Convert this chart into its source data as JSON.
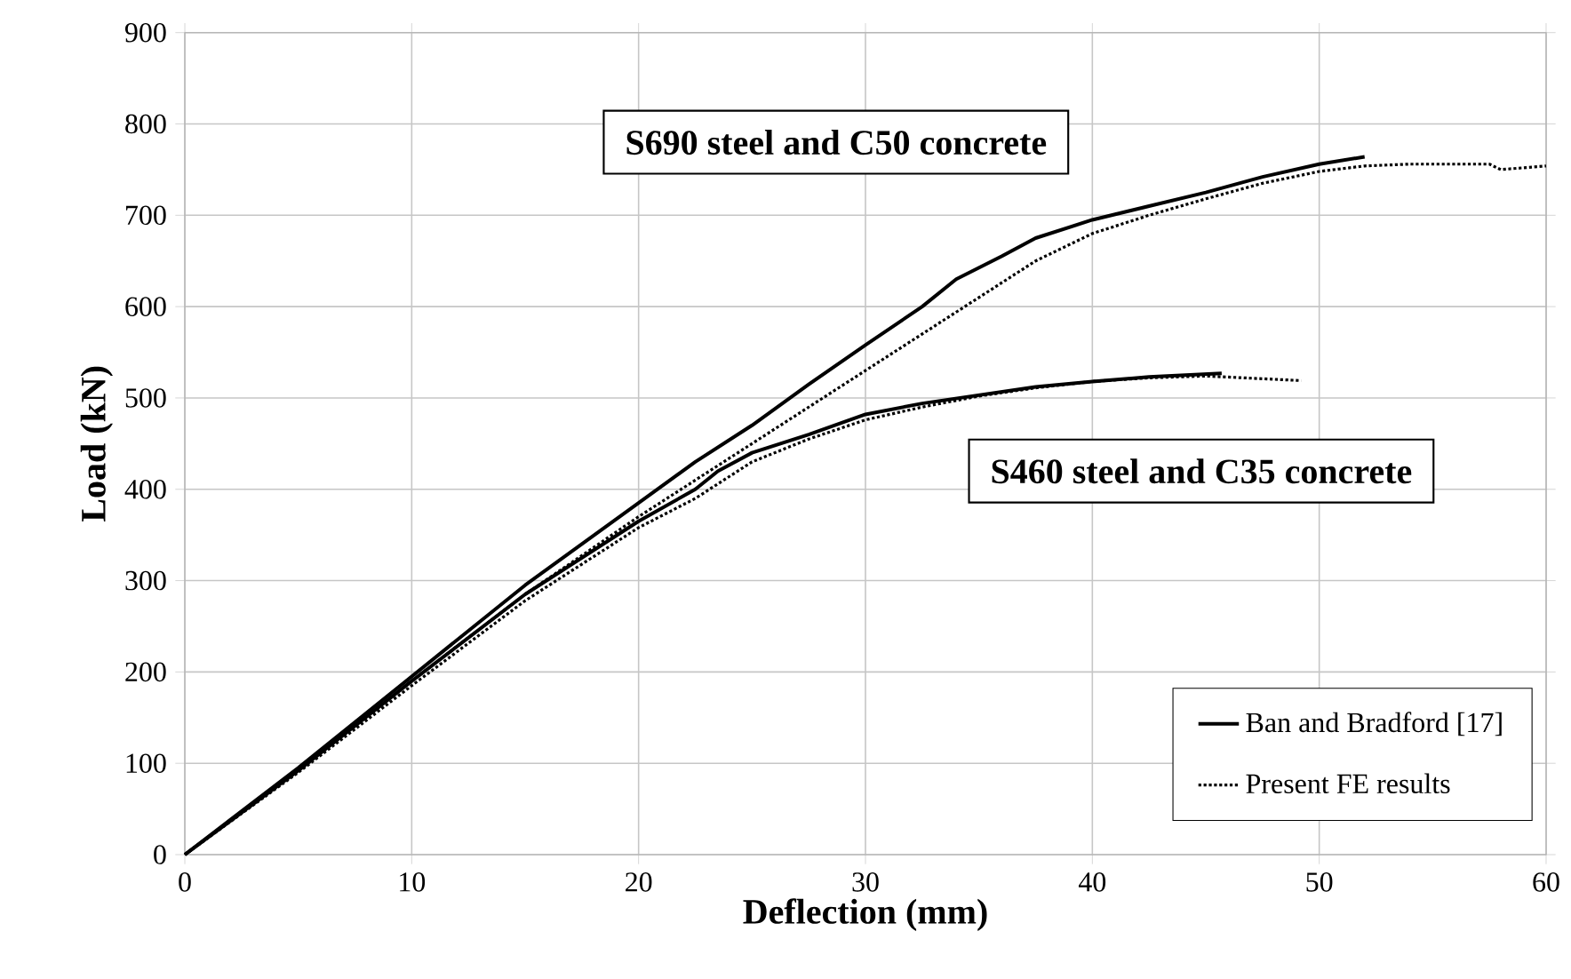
{
  "chart_data": {
    "type": "line",
    "xlabel": "Deflection (mm)",
    "ylabel": "Load (kN)",
    "xlim": [
      0,
      60
    ],
    "xticks": [
      0,
      10,
      20,
      30,
      40,
      50,
      60
    ],
    "ylim": [
      0,
      900
    ],
    "yticks": [
      0,
      100,
      200,
      300,
      400,
      500,
      600,
      700,
      800,
      900
    ],
    "grid": true,
    "legend": "bottom right",
    "marker": "none",
    "annotations": [
      "S690 steel and C50 concrete",
      "S460 steel and C35 concrete"
    ],
    "series": [
      {
        "name": "Ban and Bradford [17]",
        "color": "#000000",
        "line_style": "solid",
        "x": [
          0,
          5,
          10,
          15,
          20,
          22.5,
          25,
          27.5,
          30,
          32.5,
          34,
          36,
          37.5,
          40,
          42.5,
          45,
          47.5,
          50,
          52
        ],
        "values": [
          0,
          95,
          195,
          295,
          385,
          430,
          470,
          515,
          558,
          600,
          630,
          655,
          675,
          695,
          710,
          725,
          742,
          756,
          764
        ]
      },
      {
        "name": "Present FE results",
        "color": "#000000",
        "line_style": "dotted",
        "x": [
          0,
          5,
          10,
          15,
          20,
          25,
          30,
          32.5,
          35,
          37.5,
          40,
          42.5,
          45,
          47.5,
          50,
          52,
          54,
          57.5,
          58,
          60
        ],
        "values": [
          0,
          92,
          190,
          285,
          370,
          450,
          530,
          570,
          610,
          650,
          680,
          700,
          718,
          735,
          748,
          754,
          756,
          756,
          750,
          754
        ]
      },
      {
        "color": "#000000",
        "line_style": "solid",
        "x": [
          0,
          5,
          10,
          15,
          20,
          22.5,
          23.5,
          25,
          27.5,
          30,
          32.5,
          35,
          37.5,
          40,
          42.5,
          45.7
        ],
        "values": [
          0,
          92,
          190,
          285,
          365,
          400,
          420,
          440,
          460,
          482,
          494,
          503,
          512,
          518,
          523,
          527
        ]
      },
      {
        "color": "#000000",
        "line_style": "dotted",
        "x": [
          0,
          5,
          10,
          15,
          20,
          22.5,
          25,
          27.5,
          30,
          32.5,
          35,
          37.5,
          40,
          42.5,
          45,
          49.2
        ],
        "values": [
          0,
          90,
          185,
          278,
          358,
          390,
          430,
          455,
          476,
          490,
          502,
          511,
          518,
          522,
          524,
          519
        ]
      }
    ]
  }
}
